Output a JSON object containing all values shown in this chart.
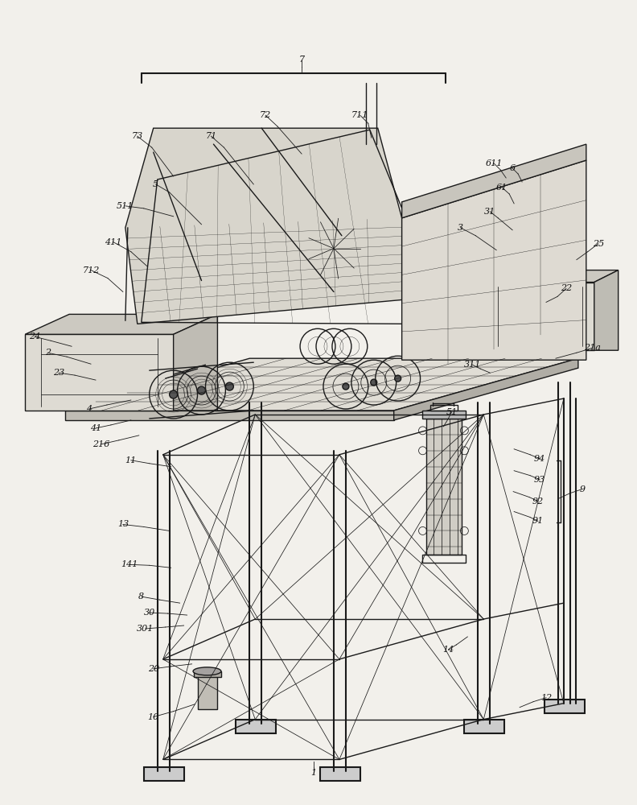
{
  "bg_color": "#f2f0eb",
  "line_color": "#1a1a1a",
  "label_color": "#111111",
  "lw": 1.0,
  "tlw": 0.55,
  "thw": 1.5,
  "label_fs": 8.0
}
